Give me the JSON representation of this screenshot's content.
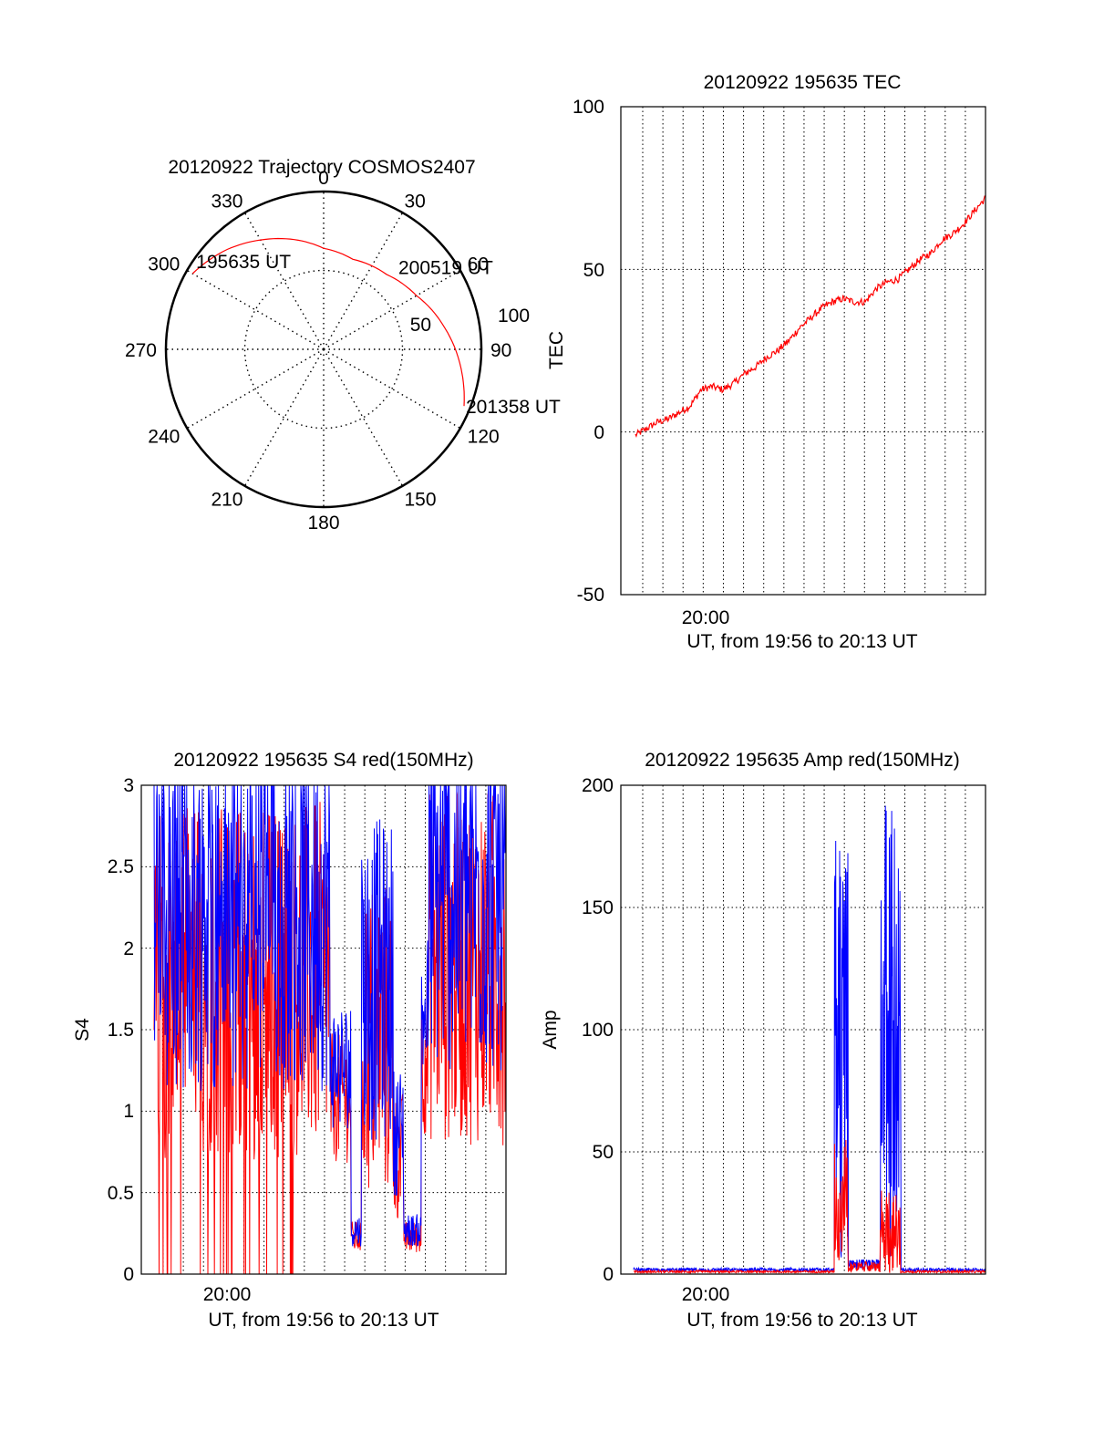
{
  "chart_data": [
    {
      "type": "polar",
      "title": "20120922 Trajectory COSMOS2407",
      "angle_ticks": [
        "0",
        "30",
        "60",
        "90",
        "120",
        "150",
        "180",
        "210",
        "240",
        "270",
        "300",
        "330"
      ],
      "radius_tick_labels": [
        "50",
        "100"
      ],
      "radius_range": [
        0,
        100
      ],
      "grid": true,
      "trajectory": {
        "color": "#ff0000",
        "points": [
          {
            "az": 300,
            "zen": 96
          },
          {
            "az": 316,
            "zen": 88
          },
          {
            "az": 330,
            "zen": 80
          },
          {
            "az": 345,
            "zen": 72
          },
          {
            "az": 0,
            "zen": 64
          },
          {
            "az": 18,
            "zen": 60
          },
          {
            "az": 40,
            "zen": 62
          },
          {
            "az": 60,
            "zen": 68
          },
          {
            "az": 80,
            "zen": 78
          },
          {
            "az": 98,
            "zen": 88
          },
          {
            "az": 112,
            "zen": 96
          }
        ],
        "time_labels": [
          {
            "text": "195635 UT",
            "az": 300,
            "zen": 96
          },
          {
            "text": "200519 UT",
            "az": 52,
            "zen": 66
          },
          {
            "text": "201358 UT",
            "az": 112,
            "zen": 96
          }
        ]
      }
    },
    {
      "type": "line",
      "title": "20120922 195635 TEC",
      "xlabel": "UT, from 19:56 to 20:13 UT",
      "ylabel": "TEC",
      "x_tick_label": "20:00",
      "ytick_labels": [
        "-50",
        "0",
        "50",
        "100"
      ],
      "ylim": [
        -50,
        100
      ],
      "grid": true,
      "series": [
        {
          "color": "#ff0000",
          "x_minutes": [
            0.0,
            0.5,
            1.0,
            1.5,
            2.0,
            2.5,
            3.0,
            3.5,
            4.0,
            4.5,
            5.0,
            5.5,
            6.0,
            6.5,
            7.0,
            7.5,
            8.0,
            8.5,
            9.0,
            9.5,
            10.0,
            10.5,
            11.0,
            11.5,
            12.0,
            12.5,
            13.0,
            13.5,
            14.0,
            14.5,
            15.0,
            15.5,
            16.0
          ],
          "values": [
            -1,
            1,
            3,
            4,
            6,
            8,
            13,
            14,
            13,
            15,
            18,
            20,
            23,
            25,
            28,
            32,
            35,
            38,
            40,
            41,
            40,
            40,
            44,
            46,
            47,
            50,
            53,
            55,
            59,
            61,
            64,
            68,
            72
          ]
        }
      ]
    },
    {
      "type": "line",
      "title": "20120922 195635 S4 red(150MHz)",
      "xlabel": "UT, from 19:56 to 20:13 UT",
      "ylabel": "S4",
      "x_tick_label": "20:00",
      "ytick_labels": [
        "0",
        "0.5",
        "1",
        "1.5",
        "2",
        "2.5",
        "3"
      ],
      "ylim": [
        0,
        3
      ],
      "grid": true,
      "series": [
        {
          "color": "#ff0000"
        },
        {
          "color": "#0000ff"
        }
      ]
    },
    {
      "type": "line",
      "title": "20120922 195635 Amp red(150MHz)",
      "xlabel": "UT, from 19:56 to 20:13 UT",
      "ylabel": "Amp",
      "x_tick_label": "20:00",
      "ytick_labels": [
        "0",
        "50",
        "100",
        "150",
        "200"
      ],
      "ylim": [
        0,
        200
      ],
      "grid": true,
      "series": [
        {
          "color": "#0000ff"
        },
        {
          "color": "#ff0000"
        }
      ]
    }
  ]
}
